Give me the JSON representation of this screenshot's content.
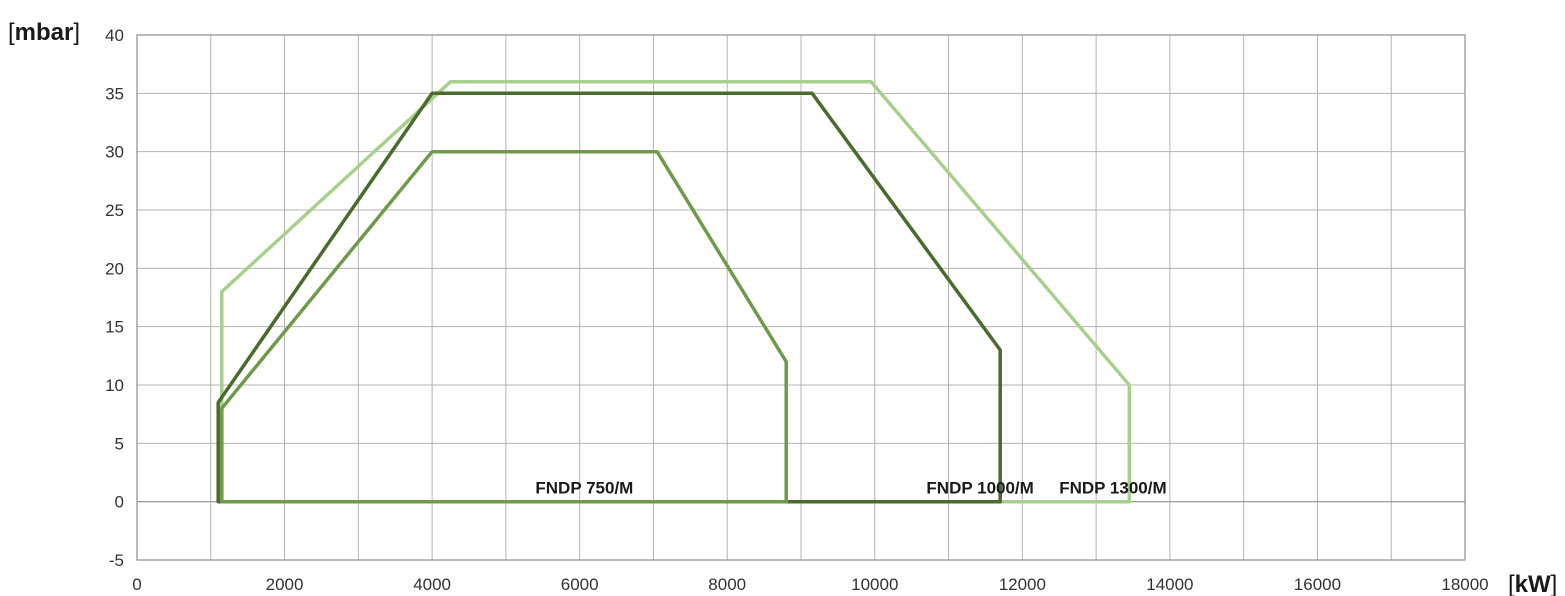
{
  "chart_data": {
    "type": "line",
    "ylabel": {
      "open": "[",
      "unit": "mbar",
      "close": "]"
    },
    "xlabel": {
      "open": "[",
      "unit": "kW",
      "close": "]"
    },
    "xlim": [
      0,
      18000
    ],
    "ylim": [
      -5,
      40
    ],
    "x_ticks": [
      0,
      2000,
      4000,
      6000,
      8000,
      10000,
      12000,
      14000,
      16000,
      18000
    ],
    "y_ticks": [
      -5,
      0,
      5,
      10,
      15,
      20,
      25,
      30,
      35,
      40
    ],
    "x_minor_step": 1000,
    "grid": true,
    "series": [
      {
        "name": "FNDP 750/M",
        "color": "#6f9a4a",
        "label_at": [
          5400,
          0
        ],
        "points": [
          [
            1150,
            0
          ],
          [
            1150,
            8
          ],
          [
            4000,
            30
          ],
          [
            7050,
            30
          ],
          [
            8800,
            12
          ],
          [
            8800,
            0
          ],
          [
            1150,
            0
          ]
        ]
      },
      {
        "name": "FNDP 1000/M",
        "color": "#4a6a2e",
        "label_at": [
          10700,
          0
        ],
        "points": [
          [
            1100,
            0
          ],
          [
            1100,
            8.5
          ],
          [
            4000,
            35
          ],
          [
            9150,
            35
          ],
          [
            11700,
            13
          ],
          [
            11700,
            0
          ],
          [
            1100,
            0
          ]
        ]
      },
      {
        "name": "FNDP 1300/M",
        "color": "#a8d08d",
        "label_at": [
          12500,
          0
        ],
        "points": [
          [
            1150,
            0
          ],
          [
            1150,
            18
          ],
          [
            4250,
            36
          ],
          [
            9950,
            36
          ],
          [
            13450,
            10
          ],
          [
            13450,
            0
          ],
          [
            1150,
            0
          ]
        ]
      }
    ]
  }
}
